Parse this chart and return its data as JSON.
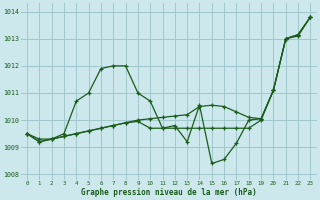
{
  "xlabel": "Graphe pression niveau de la mer (hPa)",
  "yticks": [
    1008,
    1009,
    1010,
    1011,
    1012,
    1013,
    1014
  ],
  "xticks": [
    0,
    1,
    2,
    3,
    4,
    5,
    6,
    7,
    8,
    9,
    10,
    11,
    12,
    13,
    14,
    15,
    16,
    17,
    18,
    19,
    20,
    21,
    22,
    23
  ],
  "bg_color": "#cce8ec",
  "grid_color": "#a0c8cc",
  "line_color": "#1a5c1a",
  "xlim": [
    -0.5,
    23.5
  ],
  "ylim": [
    1007.8,
    1014.3
  ],
  "series": [
    [
      1009.5,
      1009.3,
      1009.3,
      1009.5,
      1010.7,
      1011.0,
      1011.9,
      1012.0,
      1012.0,
      1011.0,
      1010.7,
      1009.7,
      1009.7,
      1009.7,
      1009.7,
      1009.7,
      1009.7,
      1009.7,
      1009.7,
      1010.0,
      1011.1,
      1013.0,
      1013.1,
      1013.8
    ],
    [
      1009.5,
      1009.2,
      1009.3,
      1009.4,
      1009.5,
      1009.6,
      1009.7,
      1009.8,
      1009.9,
      1010.0,
      1010.05,
      1010.1,
      1010.15,
      1010.2,
      1010.5,
      1010.55,
      1010.5,
      1010.3,
      1010.1,
      1010.05,
      1011.1,
      1013.0,
      1013.15,
      1013.8
    ],
    [
      1009.5,
      1009.2,
      1009.3,
      1009.4,
      1009.5,
      1009.6,
      1009.7,
      1009.8,
      1009.9,
      1009.95,
      1009.7,
      1009.7,
      1009.8,
      1009.2,
      1010.55,
      1008.4,
      1008.55,
      1009.15,
      1010.0,
      1010.05,
      1011.1,
      1013.0,
      1013.15,
      1013.8
    ]
  ]
}
